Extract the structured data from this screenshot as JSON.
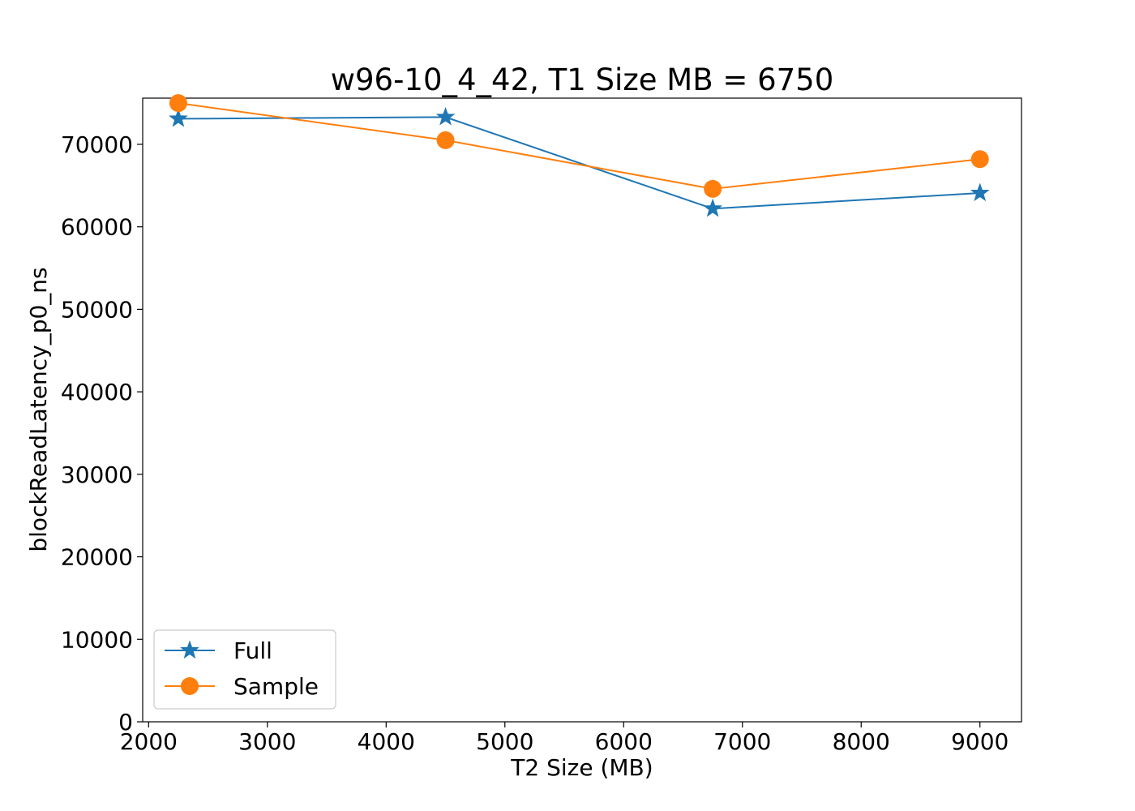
{
  "chart_data": {
    "type": "line",
    "title": "w96-10_4_42, T1 Size MB = 6750",
    "xlabel": "T2 Size (MB)",
    "ylabel": "blockReadLatency_p0_ns",
    "x": [
      2250,
      4500,
      6750,
      9000
    ],
    "xlim": [
      1950,
      9350
    ],
    "ylim": [
      0,
      75600
    ],
    "xticks": [
      2000,
      3000,
      4000,
      5000,
      6000,
      7000,
      8000,
      9000
    ],
    "yticks": [
      0,
      10000,
      20000,
      30000,
      40000,
      50000,
      60000,
      70000
    ],
    "grid": false,
    "legend_position": "lower-left",
    "series": [
      {
        "name": "Full",
        "values": [
          73100,
          73300,
          62200,
          64100
        ],
        "color": "#1f77b4",
        "marker": "star"
      },
      {
        "name": "Sample",
        "values": [
          75000,
          70500,
          64600,
          68200
        ],
        "color": "#ff7f0e",
        "marker": "circle"
      }
    ]
  }
}
